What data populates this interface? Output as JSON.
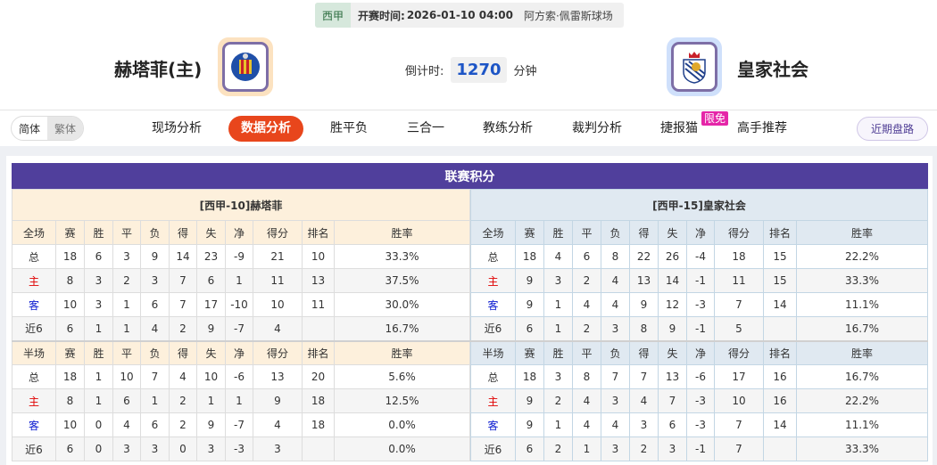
{
  "match": {
    "league": "西甲",
    "kickoff_label": "开赛时间:",
    "kickoff": "2026-01-10 04:00",
    "venue": "阿方索·佩雷斯球场"
  },
  "home": {
    "name": "赫塔菲(主)",
    "logo_color": "#fce2c0"
  },
  "away": {
    "name": "皇家社会",
    "logo_color": "#cfe0fb"
  },
  "countdown": {
    "label": "倒计时:",
    "value": "1270",
    "unit": "分钟"
  },
  "lang": {
    "simplified": "简体",
    "traditional": "繁体"
  },
  "nav": {
    "items": [
      "现场分析",
      "数据分析",
      "胜平负",
      "三合一",
      "教练分析",
      "裁判分析",
      "捷报猫",
      "高手推荐"
    ],
    "active": 1,
    "badge": "限免",
    "recent": "近期盘路"
  },
  "standings": {
    "title": "联赛积分",
    "left": {
      "team": "[西甲-10]赫塔菲",
      "full_header": [
        "全场",
        "赛",
        "胜",
        "平",
        "负",
        "得",
        "失",
        "净",
        "得分",
        "排名",
        "胜率"
      ],
      "full": [
        [
          "总",
          "18",
          "6",
          "3",
          "9",
          "14",
          "23",
          "-9",
          "21",
          "10",
          "33.3%"
        ],
        [
          "主",
          "8",
          "3",
          "2",
          "3",
          "7",
          "6",
          "1",
          "11",
          "13",
          "37.5%"
        ],
        [
          "客",
          "10",
          "3",
          "1",
          "6",
          "7",
          "17",
          "-10",
          "10",
          "11",
          "30.0%"
        ],
        [
          "近6",
          "6",
          "1",
          "1",
          "4",
          "2",
          "9",
          "-7",
          "4",
          "",
          "16.7%"
        ]
      ],
      "half_header": [
        "半场",
        "赛",
        "胜",
        "平",
        "负",
        "得",
        "失",
        "净",
        "得分",
        "排名",
        "胜率"
      ],
      "half": [
        [
          "总",
          "18",
          "1",
          "10",
          "7",
          "4",
          "10",
          "-6",
          "13",
          "20",
          "5.6%"
        ],
        [
          "主",
          "8",
          "1",
          "6",
          "1",
          "2",
          "1",
          "1",
          "9",
          "18",
          "12.5%"
        ],
        [
          "客",
          "10",
          "0",
          "4",
          "6",
          "2",
          "9",
          "-7",
          "4",
          "18",
          "0.0%"
        ],
        [
          "近6",
          "6",
          "0",
          "3",
          "3",
          "0",
          "3",
          "-3",
          "3",
          "",
          "0.0%"
        ]
      ]
    },
    "right": {
      "team": "[西甲-15]皇家社会",
      "full_header": [
        "全场",
        "赛",
        "胜",
        "平",
        "负",
        "得",
        "失",
        "净",
        "得分",
        "排名",
        "胜率"
      ],
      "full": [
        [
          "总",
          "18",
          "4",
          "6",
          "8",
          "22",
          "26",
          "-4",
          "18",
          "15",
          "22.2%"
        ],
        [
          "主",
          "9",
          "3",
          "2",
          "4",
          "13",
          "14",
          "-1",
          "11",
          "15",
          "33.3%"
        ],
        [
          "客",
          "9",
          "1",
          "4",
          "4",
          "9",
          "12",
          "-3",
          "7",
          "14",
          "11.1%"
        ],
        [
          "近6",
          "6",
          "1",
          "2",
          "3",
          "8",
          "9",
          "-1",
          "5",
          "",
          "16.7%"
        ]
      ],
      "half_header": [
        "半场",
        "赛",
        "胜",
        "平",
        "负",
        "得",
        "失",
        "净",
        "得分",
        "排名",
        "胜率"
      ],
      "half": [
        [
          "总",
          "18",
          "3",
          "8",
          "7",
          "7",
          "13",
          "-6",
          "17",
          "16",
          "16.7%"
        ],
        [
          "主",
          "9",
          "2",
          "4",
          "3",
          "4",
          "7",
          "-3",
          "10",
          "16",
          "22.2%"
        ],
        [
          "客",
          "9",
          "1",
          "4",
          "4",
          "3",
          "6",
          "-3",
          "7",
          "14",
          "11.1%"
        ],
        [
          "近6",
          "6",
          "2",
          "1",
          "3",
          "2",
          "3",
          "-1",
          "7",
          "",
          "33.3%"
        ]
      ]
    }
  }
}
